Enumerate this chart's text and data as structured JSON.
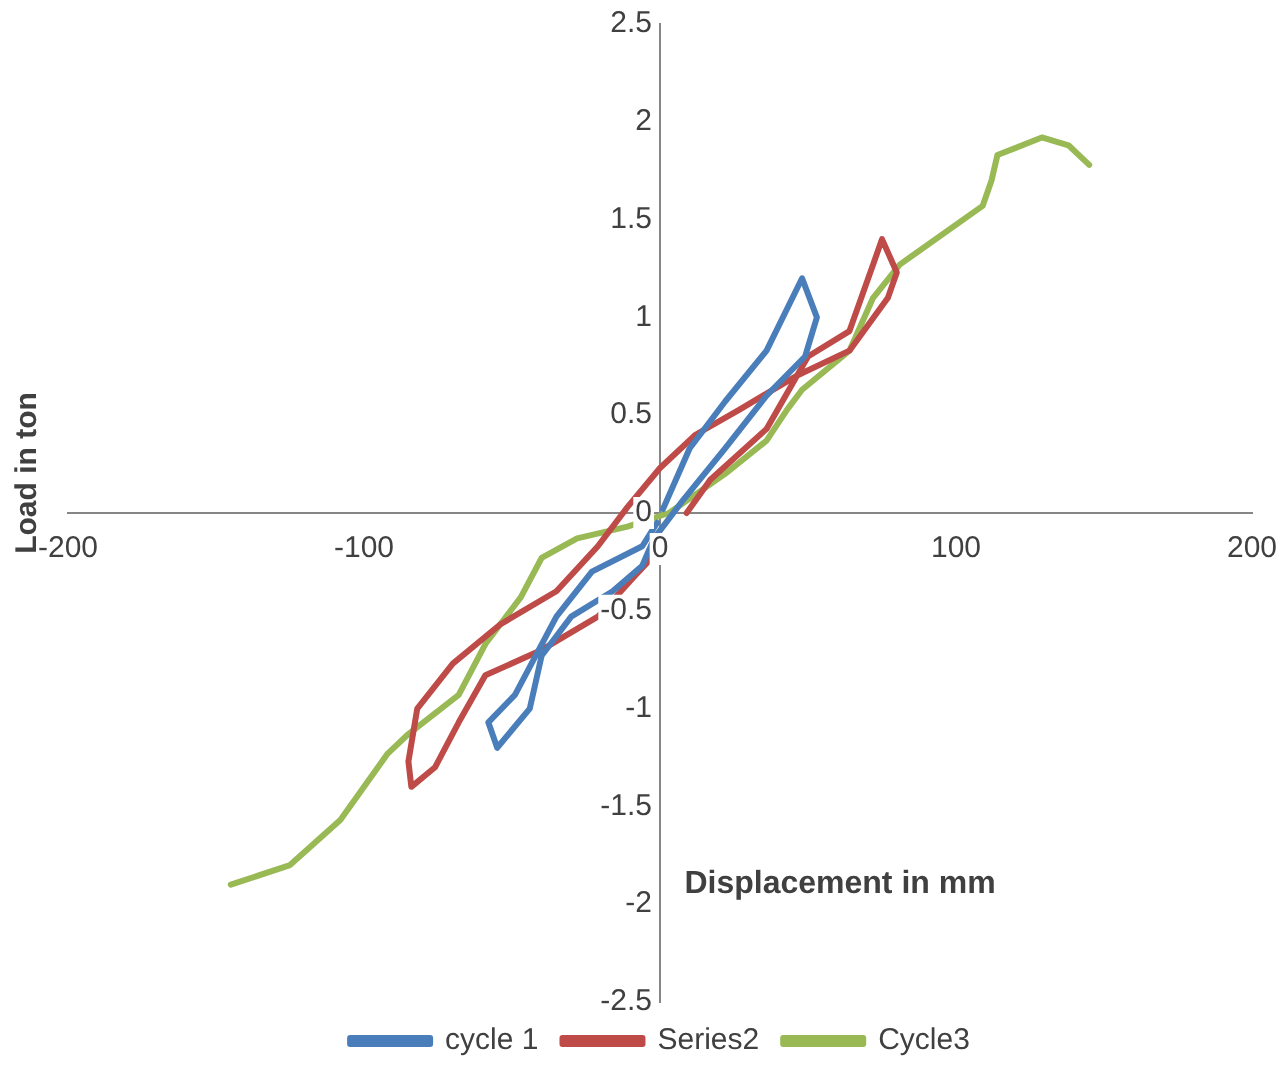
{
  "chart_data": {
    "type": "line",
    "xlabel": "Displacement in mm",
    "ylabel": "Load in ton",
    "xlim": [
      -200,
      200
    ],
    "xticks": [
      -200,
      -100,
      0,
      100,
      200
    ],
    "ylim": [
      -2.5,
      2.5
    ],
    "yticks": [
      -2.5,
      -2,
      -1.5,
      -1,
      -0.5,
      0,
      0.5,
      1,
      1.5,
      2,
      2.5
    ],
    "grid": false,
    "legend": "bottom",
    "marker": "none",
    "series": [
      {
        "name": "cycle 1",
        "color": "#4a7ebb",
        "x": [
          1,
          10,
          22,
          36,
          48,
          53,
          49,
          36,
          22,
          8,
          -2,
          -6,
          -16,
          -30,
          -40,
          -44,
          -55,
          -58,
          -49,
          -35,
          -23,
          -6,
          -1
        ],
        "values": [
          0.02,
          0.33,
          0.57,
          0.83,
          1.2,
          1.0,
          0.8,
          0.6,
          0.33,
          0.07,
          -0.13,
          -0.27,
          -0.4,
          -0.53,
          -0.73,
          -1.0,
          -1.2,
          -1.07,
          -0.93,
          -0.53,
          -0.3,
          -0.17,
          -0.05
        ]
      },
      {
        "name": "Series2",
        "color": "#be4b48",
        "x": [
          9,
          17,
          36,
          50,
          64,
          72,
          75,
          80,
          77,
          64,
          46,
          27,
          12,
          0,
          -11,
          -21,
          -35,
          -54,
          -70,
          -82,
          -85,
          -84,
          -76,
          -68,
          -59,
          -40,
          -21,
          -9,
          -1
        ],
        "values": [
          0,
          0.17,
          0.43,
          0.8,
          0.93,
          1.27,
          1.4,
          1.23,
          1.1,
          0.83,
          0.7,
          0.53,
          0.4,
          0.23,
          0.03,
          -0.17,
          -0.4,
          -0.57,
          -0.77,
          -1.0,
          -1.27,
          -1.4,
          -1.3,
          -1.07,
          -0.83,
          -0.7,
          -0.53,
          -0.33,
          -0.2
        ]
      },
      {
        "name": "Cycle3",
        "color": "#98b954",
        "x": [
          -145,
          -125,
          -108,
          -92,
          -85,
          -68,
          -59,
          -47,
          -40,
          -28,
          -11,
          3,
          22,
          36,
          43,
          48,
          64,
          72,
          81,
          109,
          112,
          114,
          129,
          138,
          145
        ],
        "values": [
          -1.9,
          -1.8,
          -1.57,
          -1.23,
          -1.13,
          -0.93,
          -0.67,
          -0.43,
          -0.23,
          -0.13,
          -0.07,
          0,
          0.2,
          0.37,
          0.53,
          0.63,
          0.83,
          1.1,
          1.27,
          1.57,
          1.7,
          1.83,
          1.92,
          1.88,
          1.78
        ]
      }
    ]
  }
}
